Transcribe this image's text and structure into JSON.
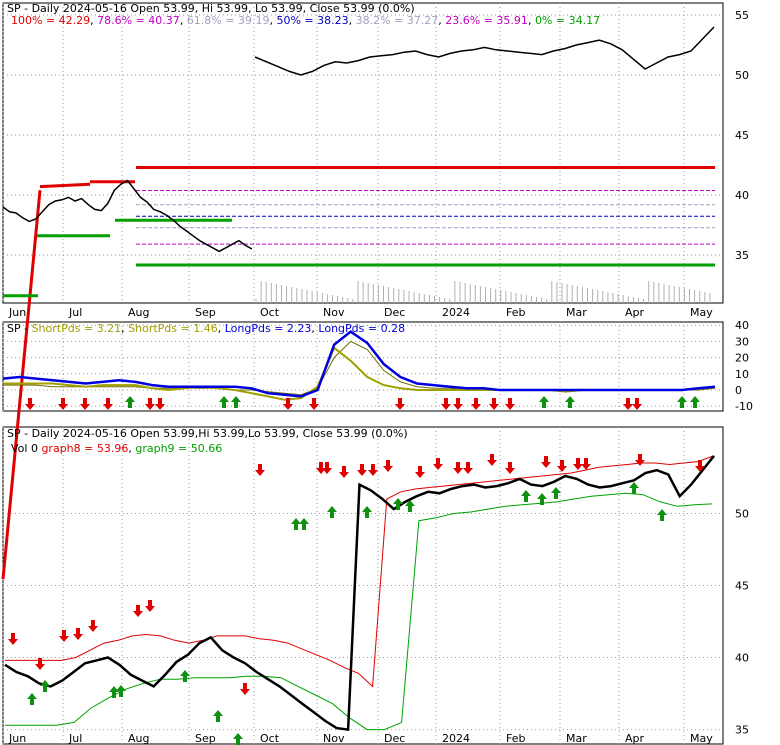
{
  "colors": {
    "background": "#ffffff",
    "panel_border": "#000000",
    "grid": "#9a9a9a",
    "price": "#000000",
    "fib_red": "#e00000",
    "fib_green": "#00a000",
    "short_pds": "#a0a000",
    "long_pds": "#0000e0",
    "graph8": "#e00000",
    "graph9": "#00a000",
    "up_arrow": "#109010",
    "down_arrow": "#e00000",
    "volume": "#b0b0b0"
  },
  "chart_data": [
    {
      "type": "line",
      "title": "SP - Daily 2024-05-16 Open 53.99, Hi 53.99, Lo 53.99, Close 53.99 (0.0%)",
      "fib_levels": [
        {
          "label": "100%",
          "value": 42.29,
          "color": "#e00000"
        },
        {
          "label": "78.6%",
          "value": 40.37,
          "color": "#c000c0"
        },
        {
          "label": "61.8%",
          "value": 39.19,
          "color": "#a0a0c0"
        },
        {
          "label": "50%",
          "value": 38.23,
          "color": "#0000c0"
        },
        {
          "label": "38.2%",
          "value": 37.27,
          "color": "#a0a0c0"
        },
        {
          "label": "23.6%",
          "value": 35.91,
          "color": "#c000c0"
        },
        {
          "label": "0%",
          "value": 34.17,
          "color": "#00a000"
        }
      ],
      "fib_legend": [
        "100% = 42.29",
        "78.6% = 40.37",
        "61.8% = 39.19",
        "50% = 38.23",
        "38.2% = 37.27",
        "23.6% = 35.91",
        "0% = 34.17"
      ],
      "x_labels": [
        "Jun",
        "Jul",
        "Aug",
        "Sep",
        "Oct",
        "Nov",
        "Dec",
        "2024",
        "Feb",
        "Mar",
        "Apr",
        "May"
      ],
      "y_ticks": [
        35,
        40,
        45,
        50,
        55
      ],
      "ylim": [
        31,
        56
      ],
      "series": [
        {
          "values": [
            39.0,
            38.6,
            38.5,
            38.1,
            37.8,
            38.0,
            38.6,
            39.2,
            39.5,
            39.6,
            39.8,
            39.5,
            39.7,
            39.2,
            38.8,
            38.7,
            39.3,
            40.4,
            40.9,
            41.2,
            40.5,
            39.8,
            39.4,
            38.8,
            38.6,
            38.3,
            37.9,
            37.4,
            37.0,
            36.6,
            36.2,
            35.9,
            35.6,
            35.3,
            35.6,
            35.9,
            36.2,
            35.8,
            35.5
          ]
        },
        {
          "values": [
            51.5,
            51.1,
            50.7,
            50.3,
            50.0,
            50.3,
            50.8,
            51.1,
            51.0,
            51.2,
            51.5,
            51.6,
            51.7,
            51.9,
            52.0,
            51.7,
            51.5,
            51.8,
            52.0,
            52.1,
            52.3,
            52.1,
            52.0,
            51.9,
            51.8,
            51.7,
            52.0,
            52.2,
            52.5,
            52.7,
            52.9,
            52.6,
            52.1,
            51.3,
            50.5,
            51.0,
            51.5,
            51.7,
            52.0,
            53.0,
            54.0
          ]
        }
      ]
    },
    {
      "type": "line",
      "title": "SP - ShortPds = 3.21, ShortPds = 1.46, LongPds = 2.23, LongPds = 0.28",
      "legend": [
        "SP",
        "ShortPds = 3.21",
        "ShortPds = 1.46",
        "LongPds = 2.23",
        "LongPds = 0.28"
      ],
      "y_ticks": [
        -10,
        0,
        10,
        20,
        30,
        40
      ],
      "ylim": [
        -13,
        42
      ],
      "series": [
        {
          "name": "LongPds = 2.23",
          "values": [
            7,
            8,
            7,
            6,
            5,
            4,
            5,
            6,
            5,
            3,
            2,
            2,
            2,
            2,
            2,
            1,
            -2,
            -3,
            -4,
            0,
            28,
            36,
            29,
            16,
            8,
            4,
            3,
            2,
            1,
            1,
            0,
            0,
            0,
            0,
            0,
            0,
            0,
            0,
            0,
            0,
            0,
            0,
            1,
            2
          ]
        },
        {
          "name": "ShortPds = 3.21",
          "values": [
            4,
            4,
            4,
            4,
            3,
            2,
            3,
            3,
            3,
            1,
            0,
            1,
            2,
            1,
            0,
            -2,
            -4,
            -6,
            -5,
            2,
            26,
            18,
            8,
            3,
            1,
            0,
            0,
            0,
            0,
            0,
            0,
            0,
            0,
            0,
            -1,
            0,
            0,
            0,
            0,
            0,
            0,
            0,
            1,
            2
          ]
        },
        {
          "name": "LongPds = 0.28",
          "values": [
            3,
            3,
            3,
            2,
            2,
            2,
            2,
            2,
            2,
            1,
            1,
            1,
            1,
            1,
            0,
            0,
            -1,
            -2,
            -3,
            1,
            20,
            30,
            25,
            12,
            5,
            2,
            1,
            1,
            0,
            0,
            0,
            0,
            0,
            0,
            0,
            0,
            0,
            0,
            0,
            0,
            0,
            0,
            0,
            1
          ]
        }
      ]
    },
    {
      "type": "line",
      "title": "SP - Daily 2024-05-16 Open 53.99,Hi 53.99,Lo 53.99, Close 53.99 (0.0%)",
      "legend": [
        "Vol 0",
        "graph8 = 53.96",
        "graph9 = 50.66"
      ],
      "y_ticks": [
        35,
        40,
        45,
        50
      ],
      "ylim": [
        34,
        56
      ],
      "series": [
        {
          "name": "price",
          "values": [
            39.5,
            39.0,
            38.7,
            38.2,
            38.0,
            38.4,
            39.0,
            39.6,
            39.8,
            40.0,
            39.5,
            38.8,
            38.4,
            38.0,
            38.8,
            39.7,
            40.2,
            41.0,
            41.4,
            40.5,
            40.0,
            39.6,
            39.0,
            38.5,
            38.0,
            37.4,
            36.8,
            36.2,
            35.6,
            35.1,
            35.0,
            52.0,
            51.6,
            51.0,
            50.3,
            50.8,
            51.2,
            51.5,
            51.4,
            51.7,
            51.9,
            52.0,
            51.8,
            51.9,
            52.1,
            52.4,
            52.0,
            51.9,
            52.2,
            52.6,
            52.4,
            52.0,
            51.8,
            51.9,
            52.1,
            52.3,
            52.8,
            53.0,
            52.7,
            51.2,
            52.0,
            53.0,
            54.0
          ]
        },
        {
          "name": "graph8 = 53.96",
          "values": [
            39.8,
            39.8,
            39.8,
            39.8,
            39.8,
            40.0,
            40.5,
            41.0,
            41.2,
            41.5,
            41.6,
            41.5,
            41.2,
            41.0,
            41.2,
            41.5,
            41.5,
            41.5,
            41.3,
            41.2,
            41.0,
            40.6,
            40.2,
            39.8,
            39.3,
            38.9,
            38.0,
            51.0,
            51.5,
            51.7,
            51.8,
            51.9,
            52.0,
            52.1,
            52.2,
            52.3,
            52.4,
            52.5,
            52.6,
            52.7,
            52.8,
            53.0,
            53.2,
            53.3,
            53.4,
            53.5,
            53.5,
            53.4,
            53.5,
            53.6,
            53.96
          ]
        },
        {
          "name": "graph9 = 50.66",
          "values": [
            35.3,
            35.3,
            35.3,
            35.3,
            35.5,
            36.5,
            37.2,
            37.8,
            38.2,
            38.5,
            38.5,
            38.6,
            38.6,
            38.6,
            38.7,
            38.7,
            38.6,
            38.0,
            37.4,
            36.8,
            35.8,
            35.0,
            35.0,
            35.5,
            49.5,
            49.7,
            50.0,
            50.1,
            50.3,
            50.5,
            50.6,
            50.7,
            50.8,
            51.0,
            51.2,
            51.3,
            51.4,
            51.3,
            50.8,
            50.5,
            50.6,
            50.66
          ]
        }
      ]
    }
  ],
  "panel1": {
    "title_text": "SP - Daily 2024-05-16 Open 53.99, Hi 53.99, Lo 53.99, Close 53.99 (0.0%)"
  },
  "panel2": {
    "prefix": "SP - ",
    "short1": "ShortPds = 3.21",
    "short2": "ShortPds = 1.46",
    "long1": "LongPds = 2.23",
    "long2": "LongPds = 0.28"
  },
  "panel3": {
    "title_text": "SP - Daily 2024-05-16 Open 53.99,Hi 53.99,Lo 53.99, Close 53.99 (0.0%)",
    "vol": "Vol 0",
    "graph8": "graph8 = 53.96",
    "graph9": "graph9 = 50.66"
  }
}
